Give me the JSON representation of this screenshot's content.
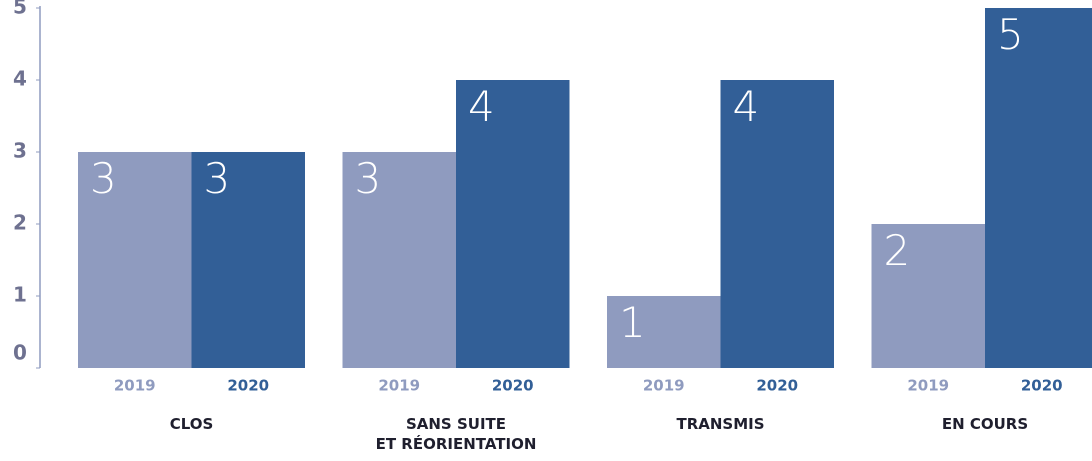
{
  "chart_data": {
    "type": "bar",
    "categories": [
      "CLOS",
      "SANS SUITE\nET RÉORIENTATION",
      "TRANSMIS",
      "EN COURS"
    ],
    "series": [
      {
        "name": "2019",
        "color": "#8f9bbf",
        "values": [
          3,
          3,
          1,
          2
        ]
      },
      {
        "name": "2020",
        "color": "#325f97",
        "values": [
          3,
          4,
          4,
          5
        ]
      }
    ],
    "ylim": [
      0,
      5
    ],
    "yticks": [
      0,
      1,
      2,
      3,
      4,
      5
    ],
    "grid": false
  }
}
